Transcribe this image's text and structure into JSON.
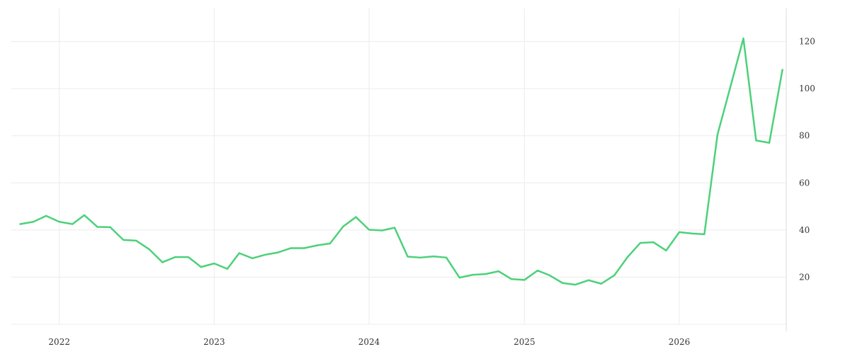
{
  "chart_data": {
    "type": "line",
    "title": "",
    "xlabel": "",
    "ylabel": "",
    "x_tick_labels": [
      "2022",
      "2023",
      "2024",
      "2025",
      "2026"
    ],
    "x_tick_values": [
      "2022-01-01",
      "2023-01-01",
      "2024-01-01",
      "2025-01-01",
      "2026-01-01"
    ],
    "y_ticks": [
      20,
      40,
      60,
      80,
      100,
      120
    ],
    "ylim": [
      0,
      134
    ],
    "xlim": [
      "2021-09-10",
      "2026-09-10"
    ],
    "grid": true,
    "y_axis_position": "right",
    "legend": "none",
    "series": [
      {
        "color": "#4cd17a",
        "x": [
          "2021-10-01",
          "2021-11-01",
          "2021-12-01",
          "2022-01-01",
          "2022-02-01",
          "2022-03-01",
          "2022-04-01",
          "2022-05-01",
          "2022-06-01",
          "2022-07-01",
          "2022-08-01",
          "2022-09-01",
          "2022-10-01",
          "2022-11-01",
          "2022-12-01",
          "2023-01-01",
          "2023-02-01",
          "2023-03-01",
          "2023-04-01",
          "2023-05-01",
          "2023-06-01",
          "2023-07-01",
          "2023-08-01",
          "2023-09-01",
          "2023-10-01",
          "2023-11-01",
          "2023-12-01",
          "2024-01-01",
          "2024-02-01",
          "2024-03-01",
          "2024-04-01",
          "2024-05-01",
          "2024-06-01",
          "2024-07-01",
          "2024-08-01",
          "2024-09-01",
          "2024-10-01",
          "2024-11-01",
          "2024-12-01",
          "2025-01-01",
          "2025-02-01",
          "2025-03-01",
          "2025-04-01",
          "2025-05-01",
          "2025-06-01",
          "2025-07-01",
          "2025-08-01",
          "2025-09-01",
          "2025-10-01",
          "2025-11-01",
          "2025-12-01",
          "2026-01-01",
          "2026-02-01",
          "2026-03-01",
          "2026-04-01",
          "2026-05-01",
          "2026-06-01",
          "2026-07-01",
          "2026-08-01",
          "2026-09-01"
        ],
        "values": [
          42.5,
          43.5,
          46,
          43.5,
          42.5,
          46.3,
          41.3,
          41.2,
          35.8,
          35.5,
          31.8,
          26.3,
          28.5,
          28.5,
          24.3,
          25.8,
          23.5,
          30.2,
          28,
          29.5,
          30.5,
          32.3,
          32.3,
          33.5,
          34.3,
          41.5,
          45.5,
          40.1,
          39.8,
          41,
          28.7,
          28.3,
          28.8,
          28.3,
          19.8,
          21,
          21.3,
          22.5,
          19.2,
          18.8,
          22.8,
          20.8,
          17.5,
          16.8,
          18.7,
          17.2,
          20.8,
          28.5,
          34.5,
          34.8,
          31.3,
          39.1,
          38.5,
          38.2,
          80.5,
          100.5,
          121.3,
          78,
          77,
          108
        ]
      }
    ]
  }
}
